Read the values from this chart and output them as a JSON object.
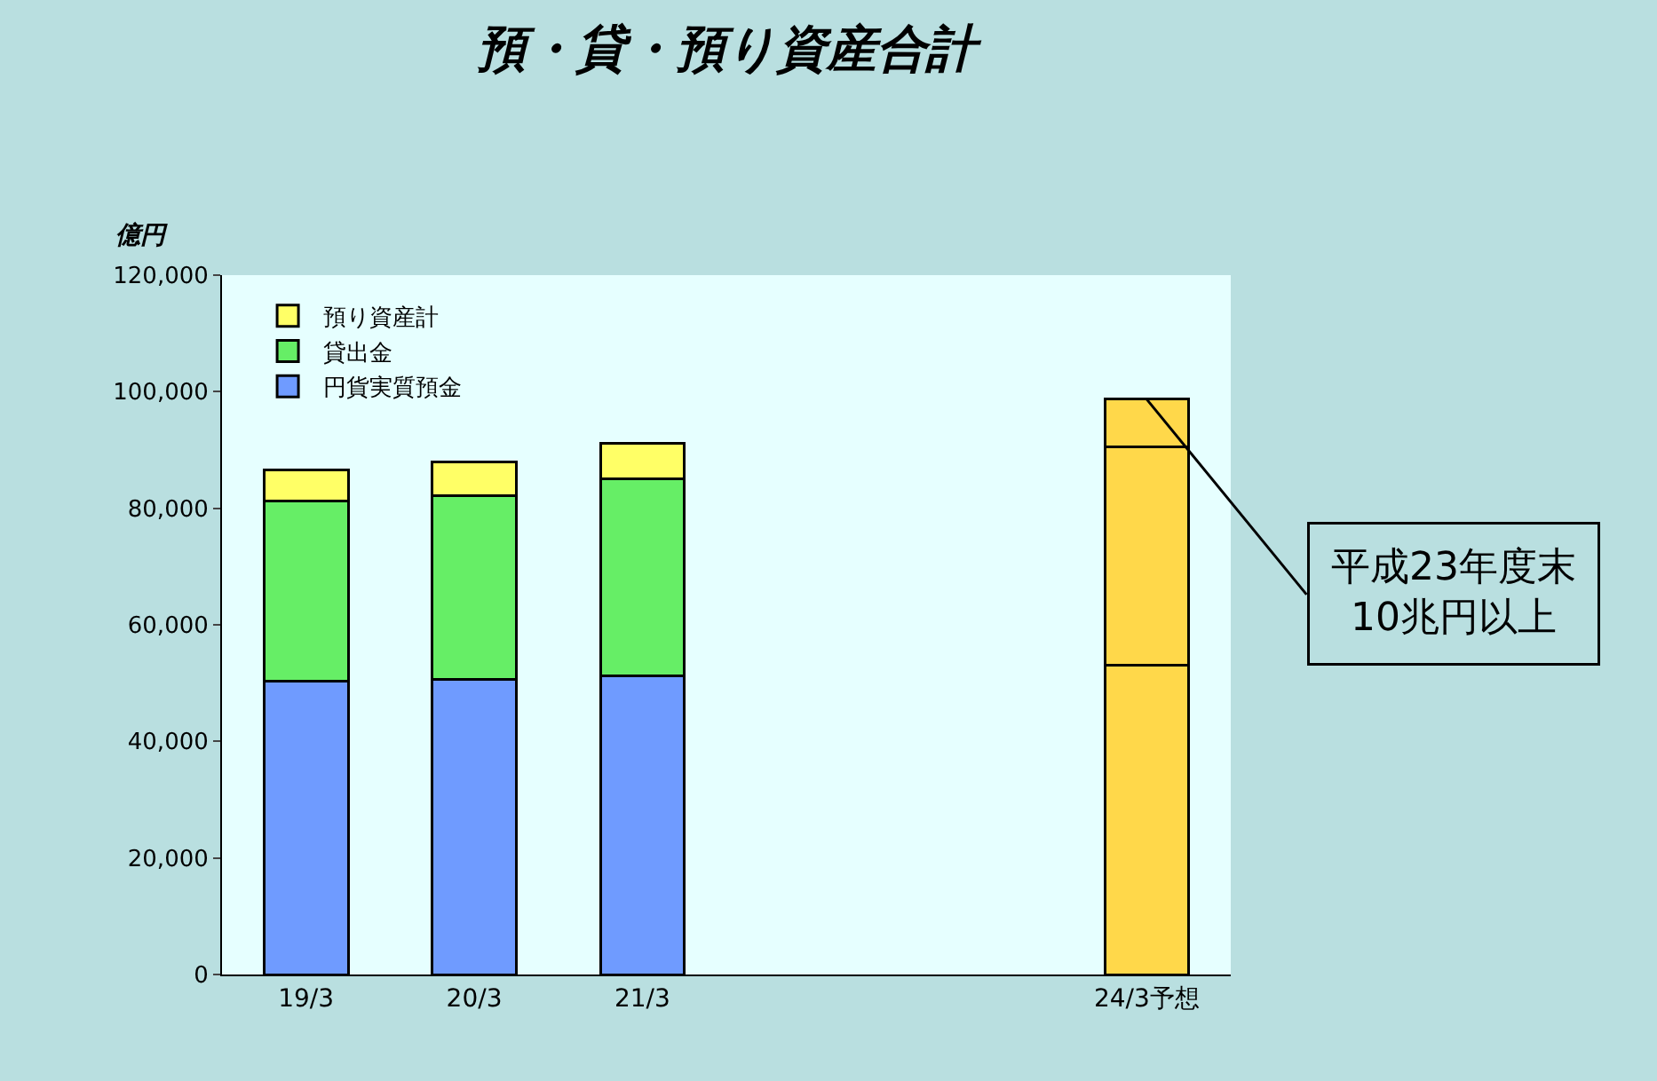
{
  "chart_data": {
    "type": "bar",
    "stacked": true,
    "title": "預・貸・預り資産合計",
    "ylabel": "億円",
    "categories": [
      "19/3",
      "20/3",
      "21/3",
      null,
      null,
      "24/3予想"
    ],
    "series": [
      {
        "name": "円貨実質預金",
        "color": "#6f9bff",
        "colors": [
          null,
          null,
          null,
          null,
          null,
          "#ffd84a"
        ],
        "values": [
          50300,
          50600,
          51200,
          null,
          null,
          53000
        ]
      },
      {
        "name": "貸出金",
        "color": "#66ee66",
        "colors": [
          null,
          null,
          null,
          null,
          null,
          "#ffd84a"
        ],
        "values": [
          31000,
          31600,
          33800,
          null,
          null,
          37500
        ]
      },
      {
        "name": "預り資産計",
        "color": "#ffff66",
        "colors": [
          null,
          null,
          null,
          null,
          null,
          "#ffd84a"
        ],
        "values": [
          5200,
          5800,
          6100,
          null,
          null,
          8200
        ]
      }
    ],
    "ylim": [
      0,
      120000
    ],
    "yticks": [
      {
        "value": 0,
        "label": "0"
      },
      {
        "value": 20000,
        "label": "20,000"
      },
      {
        "value": 40000,
        "label": "40,000"
      },
      {
        "value": 60000,
        "label": "60,000"
      },
      {
        "value": 80000,
        "label": "80,000"
      },
      {
        "value": 100000,
        "label": "100,000"
      },
      {
        "value": 120000,
        "label": "120,000"
      }
    ],
    "grid": false,
    "legend": "top left",
    "annotations": [
      {
        "text": "平成23年度末\n10兆円以上",
        "x": "24/3予想",
        "y": 98700
      }
    ]
  }
}
